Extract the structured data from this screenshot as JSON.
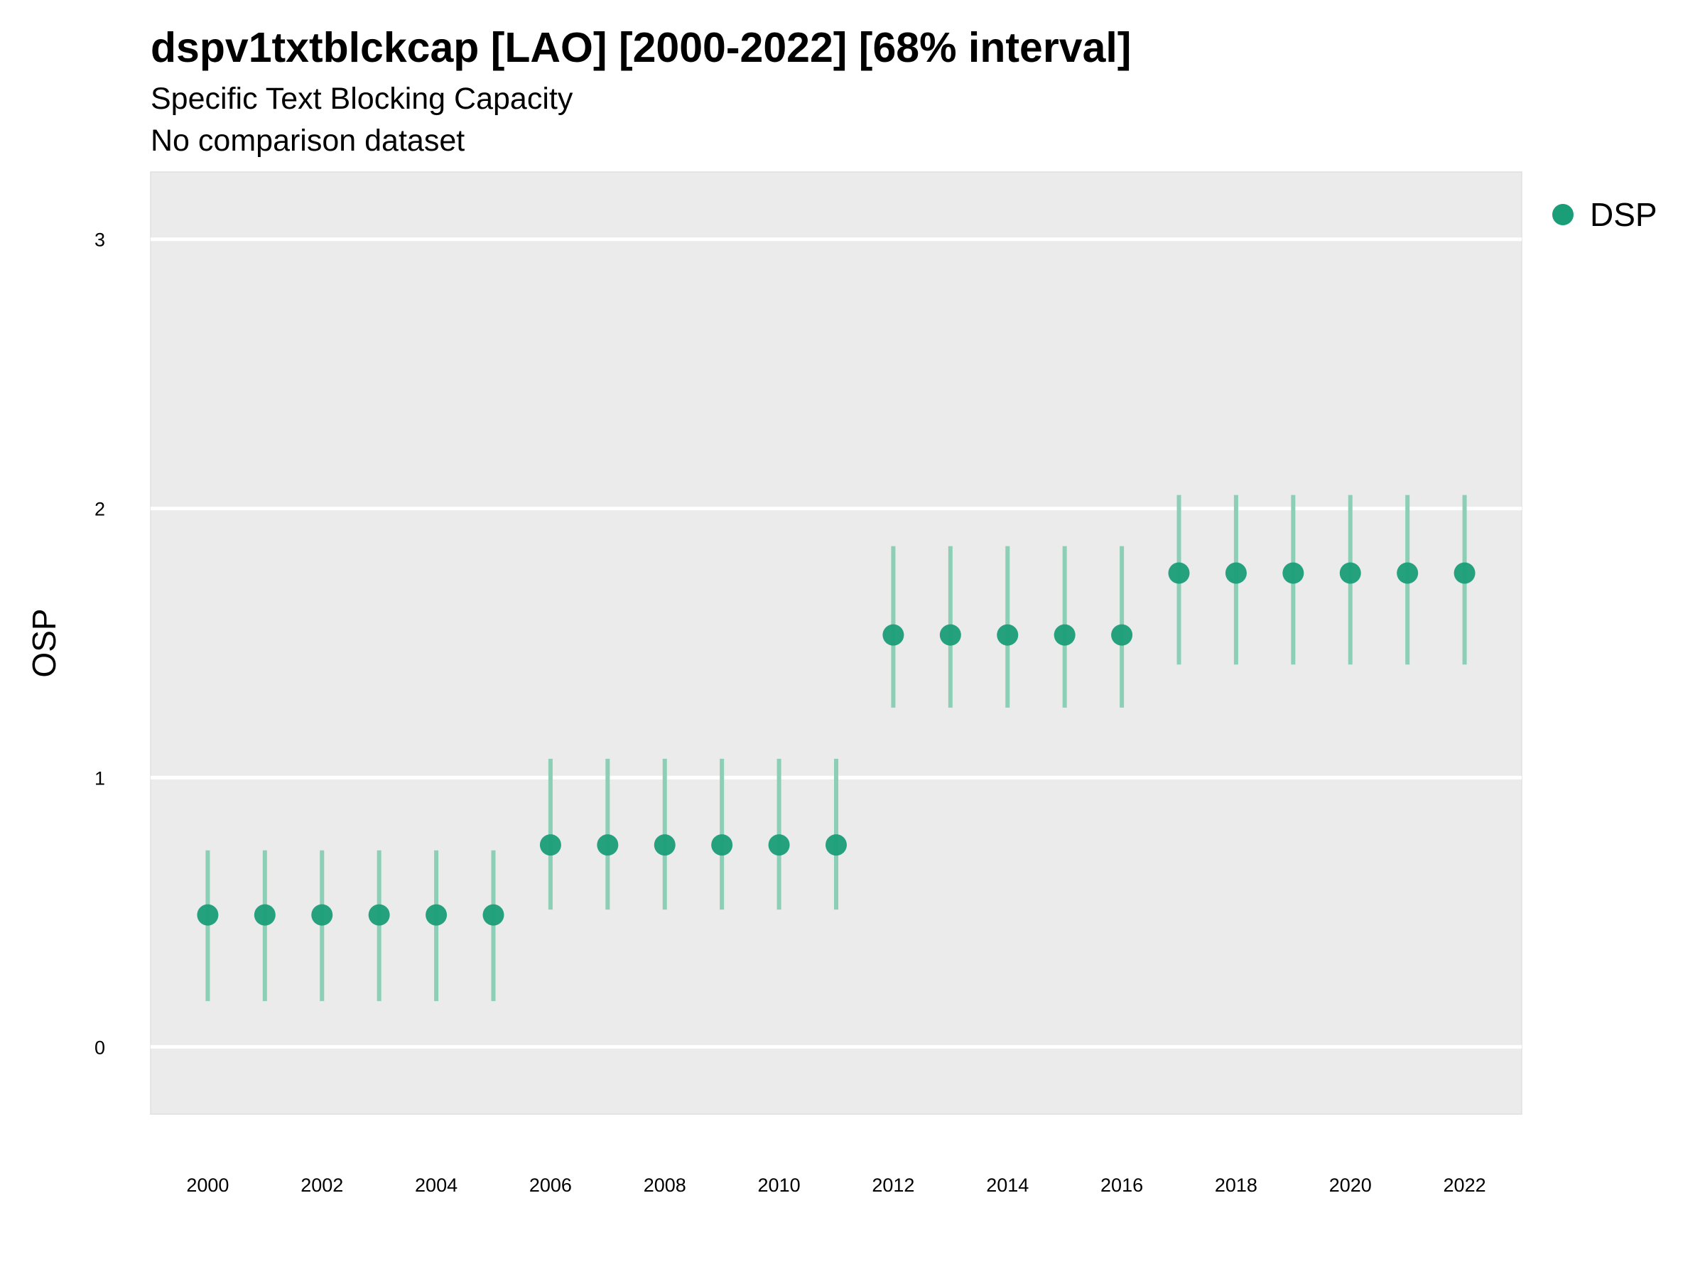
{
  "title": "dspv1txtblckcap [LAO] [2000-2022] [68% interval]",
  "subtitle": "Specific Text Blocking Capacity",
  "subtitle2": "No comparison dataset",
  "chart_data": {
    "type": "scatter",
    "title": "dspv1txtblckcap [LAO] [2000-2022] [68% interval]",
    "subtitle": "Specific Text Blocking Capacity",
    "caption": "No comparison dataset",
    "xlabel": "",
    "ylabel": "OSP",
    "xlim": [
      1999,
      2023
    ],
    "ylim": [
      -0.25,
      3.25
    ],
    "x_ticks": [
      2000,
      2002,
      2004,
      2006,
      2008,
      2010,
      2012,
      2014,
      2016,
      2018,
      2020,
      2022
    ],
    "y_ticks": [
      0,
      1,
      2,
      3
    ],
    "grid": true,
    "legend_position": "right-top",
    "series": [
      {
        "name": "DSP",
        "color": "#1a9e77",
        "error_bar_color": "#8ccfb7",
        "x": [
          2000,
          2001,
          2002,
          2003,
          2004,
          2005,
          2006,
          2007,
          2008,
          2009,
          2010,
          2011,
          2012,
          2013,
          2014,
          2015,
          2016,
          2017,
          2018,
          2019,
          2020,
          2021,
          2022
        ],
        "y": [
          0.49,
          0.49,
          0.49,
          0.49,
          0.49,
          0.49,
          0.75,
          0.75,
          0.75,
          0.75,
          0.75,
          0.75,
          1.53,
          1.53,
          1.53,
          1.53,
          1.53,
          1.76,
          1.76,
          1.76,
          1.76,
          1.76,
          1.76
        ],
        "lower": [
          0.17,
          0.17,
          0.17,
          0.17,
          0.17,
          0.17,
          0.51,
          0.51,
          0.51,
          0.51,
          0.51,
          0.51,
          1.26,
          1.26,
          1.26,
          1.26,
          1.26,
          1.42,
          1.42,
          1.42,
          1.42,
          1.42,
          1.42
        ],
        "upper": [
          0.73,
          0.73,
          0.73,
          0.73,
          0.73,
          0.73,
          1.07,
          1.07,
          1.07,
          1.07,
          1.07,
          1.07,
          1.86,
          1.86,
          1.86,
          1.86,
          1.86,
          2.05,
          2.05,
          2.05,
          2.05,
          2.05,
          2.05
        ]
      }
    ]
  }
}
